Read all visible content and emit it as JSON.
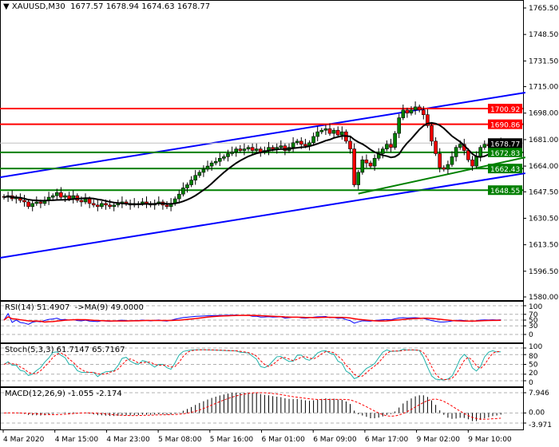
{
  "header": {
    "symbol": "XAUUSD,M30",
    "ohlc": "1677.57 1678.94 1674.63 1678.77",
    "menu_icon": "triangle-down-icon"
  },
  "price_axis": {
    "ticks": [
      "1765.50",
      "1748.50",
      "1731.50",
      "1715.00",
      "1698.00",
      "1681.00",
      "1664.00",
      "1647.50",
      "1630.50",
      "1613.50",
      "1596.50",
      "1580.00"
    ],
    "range": [
      1580.0,
      1765.5
    ]
  },
  "levels": [
    {
      "label": "1700.92",
      "price": 1700.92,
      "color": "#ff0000"
    },
    {
      "label": "1690.86",
      "price": 1690.86,
      "color": "#ff0000"
    },
    {
      "label": "1672.83",
      "price": 1672.83,
      "color": "#008000"
    },
    {
      "label": "1662.43",
      "price": 1662.43,
      "color": "#008000"
    },
    {
      "label": "1648.55",
      "price": 1648.55,
      "color": "#008000"
    }
  ],
  "current_price": {
    "label": "1678.77",
    "price": 1678.77,
    "color": "#000000"
  },
  "trendlines": [
    {
      "name": "channel-upper",
      "color": "#0000ff",
      "from_price": 1656.8,
      "to_price": 1711.2,
      "from_bar": -1,
      "to_bar": 128
    },
    {
      "name": "channel-lower",
      "color": "#0000ff",
      "from_price": 1605.1,
      "to_price": 1659.4,
      "from_bar": -1,
      "to_bar": 128
    },
    {
      "name": "support-trend",
      "color": "#008000",
      "from_price": 1646.3,
      "to_price": 1669.6,
      "from_bar": 87,
      "to_bar": 128
    }
  ],
  "candles": {
    "closes": [
      1644,
      1645,
      1643,
      1644,
      1642,
      1641,
      1638,
      1640,
      1641,
      1640,
      1642,
      1644,
      1645,
      1647,
      1644,
      1645,
      1643,
      1645,
      1642,
      1641,
      1643,
      1640,
      1639,
      1638,
      1640,
      1639,
      1638,
      1639,
      1640,
      1641,
      1640,
      1639,
      1640,
      1640,
      1641,
      1640,
      1639,
      1640,
      1641,
      1639,
      1638,
      1640,
      1643,
      1646,
      1650,
      1652,
      1655,
      1658,
      1660,
      1662,
      1664,
      1666,
      1667,
      1669,
      1670,
      1672,
      1673,
      1675,
      1674,
      1675,
      1676,
      1674,
      1675,
      1673,
      1674,
      1676,
      1675,
      1676,
      1677,
      1674,
      1676,
      1679,
      1680,
      1678,
      1677,
      1679,
      1683,
      1686,
      1687,
      1688,
      1685,
      1687,
      1684,
      1686,
      1680,
      1675,
      1652,
      1660,
      1668,
      1666,
      1664,
      1669,
      1672,
      1675,
      1678,
      1676,
      1685,
      1695,
      1700,
      1698,
      1700,
      1702,
      1700,
      1697,
      1690,
      1680,
      1672,
      1663,
      1662,
      1665,
      1670,
      1676,
      1678,
      1674,
      1668,
      1664,
      1670,
      1676,
      1678,
      1677,
      1679,
      1677,
      1678.77
    ],
    "bull_color": "#008000",
    "bear_color": "#ff0000",
    "ma_color": "#000000"
  },
  "time_axis": [
    "4 Mar 2020",
    "4 Mar 15:00",
    "4 Mar 23:00",
    "5 Mar 08:00",
    "5 Mar 16:00",
    "6 Mar 01:00",
    "6 Mar 09:00",
    "6 Mar 17:00",
    "9 Mar 02:00",
    "9 Mar 10:00"
  ],
  "rsi": {
    "label": "RSI(14) 51.4907  ->MA(9) 49.0000",
    "levels": [
      "100",
      "70",
      "50",
      "30",
      "0"
    ],
    "line_color": "#0000ff",
    "ma_color": "#ff0000"
  },
  "stoch": {
    "label": "Stoch(5,3,3) 61.7147 65.7167",
    "levels": [
      "100",
      "80",
      "50",
      "20",
      "0"
    ],
    "main_color": "#20b2aa",
    "signal_color": "#ff0000"
  },
  "macd": {
    "label": "MACD(12,26,9) -1.055 -2.174",
    "levels": [
      "7.946",
      "0.00",
      "-3.971"
    ],
    "range": [
      -3.971,
      7.946
    ]
  }
}
